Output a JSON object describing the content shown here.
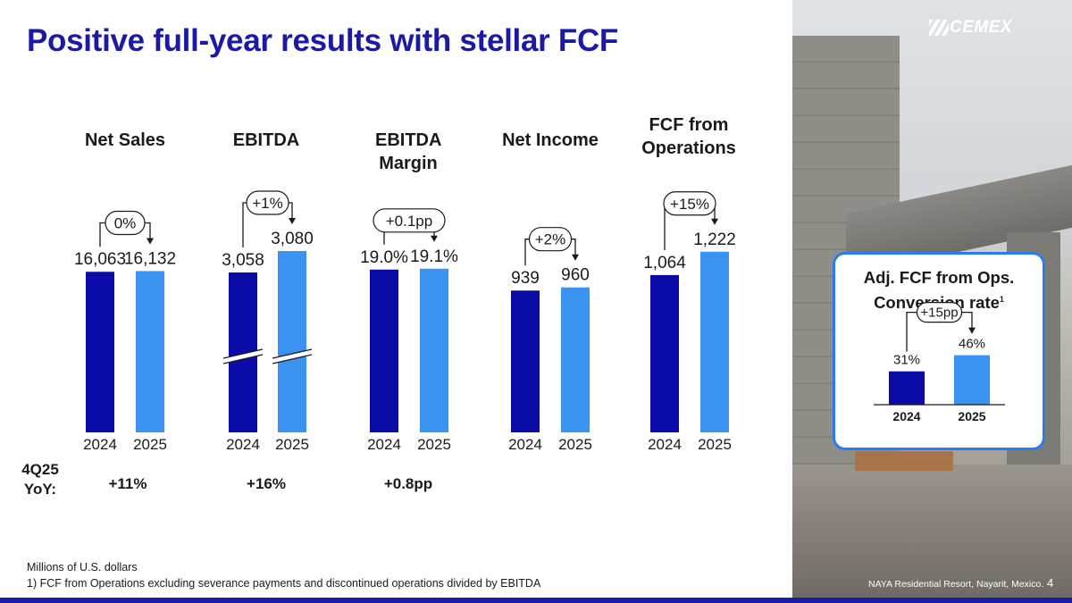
{
  "title": "Positive full-year results with stellar FCF",
  "brand": "CEMEX",
  "metrics": [
    {
      "title": "Net Sales"
    },
    {
      "title": "EBITDA"
    },
    {
      "title": "EBITDA Margin"
    },
    {
      "title": "Net Income"
    },
    {
      "title": "FCF from Operations"
    }
  ],
  "yoy": {
    "label": "4Q25 YoY:",
    "values": [
      "+11%",
      "+16%",
      "+0.8pp"
    ]
  },
  "inset": {
    "title": "Adj. FCF from Ops. Conversion rate",
    "superscript": "1"
  },
  "chart_data": [
    {
      "type": "bar",
      "title": "Net Sales",
      "categories": [
        "2024",
        "2025"
      ],
      "values": [
        16063,
        16132
      ],
      "labels": [
        "16,063",
        "16,132"
      ],
      "change": "0%",
      "axis_break": false,
      "ylim": [
        0,
        21000
      ]
    },
    {
      "type": "bar",
      "title": "EBITDA",
      "categories": [
        "2024",
        "2025"
      ],
      "values": [
        3058,
        3080
      ],
      "labels": [
        "3,058",
        "3,080"
      ],
      "change": "+1%",
      "axis_break": true
    },
    {
      "type": "bar",
      "title": "EBITDA Margin",
      "categories": [
        "2024",
        "2025"
      ],
      "values": [
        19.0,
        19.1
      ],
      "labels": [
        "19.0%",
        "19.1%"
      ],
      "change": "+0.1pp",
      "axis_break": false,
      "ylim": [
        0,
        24.5
      ]
    },
    {
      "type": "bar",
      "title": "Net Income",
      "categories": [
        "2024",
        "2025"
      ],
      "values": [
        939,
        960
      ],
      "labels": [
        "939",
        "960"
      ],
      "change": "+2%",
      "axis_break": false,
      "ylim": [
        0,
        1390
      ]
    },
    {
      "type": "bar",
      "title": "FCF from Operations",
      "categories": [
        "2024",
        "2025"
      ],
      "values": [
        1064,
        1222
      ],
      "labels": [
        "1,064",
        "1,222"
      ],
      "change": "+15%",
      "axis_break": false,
      "ylim": [
        0,
        1420
      ]
    },
    {
      "type": "bar",
      "title": "Adj. FCF from Ops. Conversion rate",
      "categories": [
        "2024",
        "2025"
      ],
      "values": [
        31,
        46
      ],
      "labels": [
        "31%",
        "46%"
      ],
      "change": "+15pp",
      "axis_break": false,
      "ylim": [
        0,
        54
      ]
    }
  ],
  "footnotes": [
    "Millions of U.S. dollars",
    "1) FCF from Operations excluding severance payments and discontinued operations divided by EBITDA"
  ],
  "photo_caption": "NAYA Residential Resort, Nayarit, Mexico.",
  "page_number": "4",
  "colors": {
    "title": "#1a1aa6",
    "bar_2024": "#0b0ba8",
    "bar_2025": "#3a93f0",
    "accent": "#2a7cf0"
  }
}
